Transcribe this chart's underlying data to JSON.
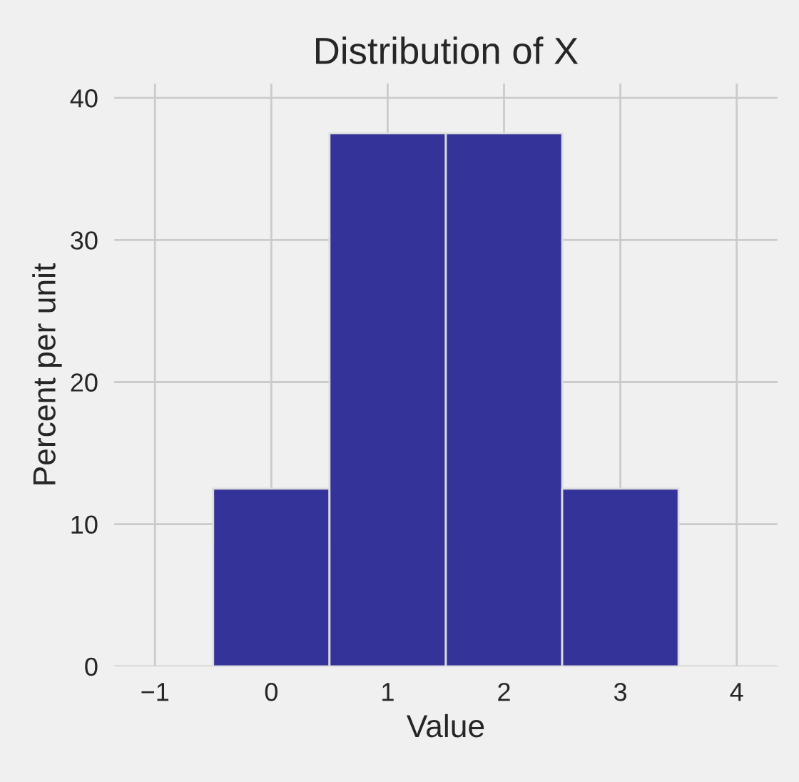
{
  "chart_data": {
    "type": "histogram",
    "title": "Distribution of X",
    "xlabel": "Value",
    "ylabel": "Percent per unit",
    "bins": [
      -0.5,
      0.5,
      1.5,
      2.5,
      3.5
    ],
    "values": [
      12.5,
      37.5,
      37.5,
      12.5
    ],
    "color": "#333399",
    "xlim": [
      -1.35,
      4.35
    ],
    "xticks": [
      {
        "value": -1,
        "label": "−1"
      },
      0,
      1,
      2,
      3,
      4
    ],
    "ylim": [
      0,
      41
    ],
    "yticks": [
      0,
      10,
      20,
      30,
      40
    ],
    "grid": true
  }
}
